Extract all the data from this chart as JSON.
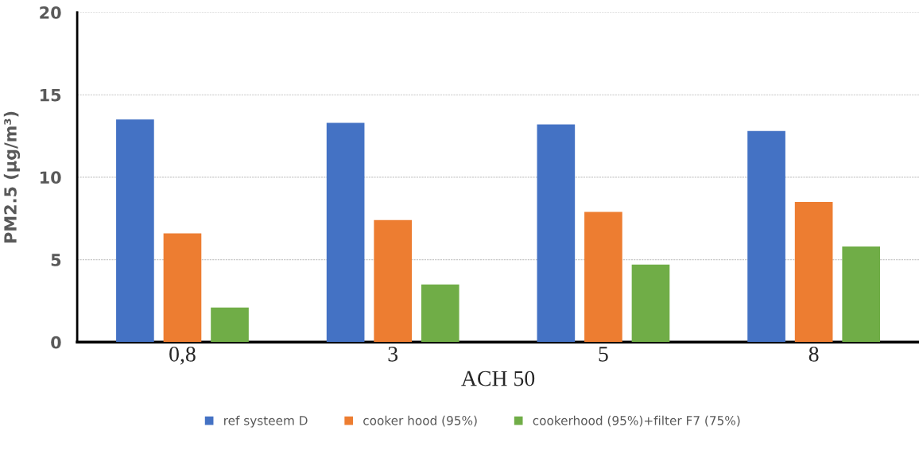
{
  "chart_data": {
    "type": "bar",
    "xlabel": "ACH 50",
    "ylabel": "PM2.5 (µg/m³)",
    "categories": [
      "0,8",
      "3",
      "5",
      "8"
    ],
    "series": [
      {
        "name": "ref systeem D",
        "color": "#4472c4",
        "values": [
          13.5,
          13.3,
          13.2,
          12.8
        ]
      },
      {
        "name": "cooker hood (95%)",
        "color": "#ed7d31",
        "values": [
          6.6,
          7.4,
          7.9,
          8.5
        ]
      },
      {
        "name": "cookerhood (95%)+filter F7 (75%)",
        "color": "#70ad47",
        "values": [
          2.1,
          3.5,
          4.7,
          5.8
        ]
      }
    ],
    "ylim": [
      0,
      20
    ],
    "yticks": [
      0,
      5,
      10,
      15,
      20
    ],
    "grid": "y",
    "legend": "bottom"
  }
}
